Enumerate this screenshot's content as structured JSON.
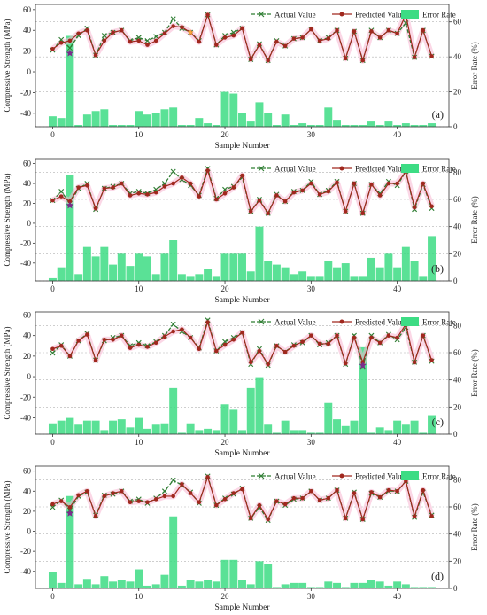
{
  "colors": {
    "actual": "#2e7d32",
    "predicted": "#a0281e",
    "error_bar": "#3ddc84",
    "highlight_pink": "#f7b6d2",
    "marker_purple": "#7b2d8b",
    "marker_orange": "#f4a93b",
    "gridline": "#b0b0b0"
  },
  "chart_data": [
    {
      "type": "line+bar",
      "panel_label": "(a)",
      "xlabel": "Sample Number",
      "ylabel": "Compressive Strength (MPa)",
      "ylabel_right": "Error Rate (%)",
      "x_ticks": [
        0,
        10,
        20,
        30,
        40
      ],
      "y_ticks": [
        -40,
        -20,
        0,
        20,
        40,
        60
      ],
      "y_right_ticks": [
        0,
        20,
        40,
        60
      ],
      "xlim": [
        -2,
        46
      ],
      "ylim": [
        -53,
        65
      ],
      "y_right_lim": [
        0,
        70
      ],
      "legend": [
        "Actual Value",
        "Predicted Value",
        "Error Rate"
      ],
      "legend_position": "top-right",
      "actual": [
        21,
        31,
        23,
        35,
        42,
        16,
        35,
        38,
        40,
        30,
        33,
        30,
        34,
        38,
        51,
        42,
        38,
        30,
        55,
        26,
        35,
        38,
        42,
        12,
        27,
        11,
        30,
        25,
        32,
        33,
        41,
        30,
        33,
        40,
        13,
        39,
        11,
        40,
        33,
        40,
        37,
        47,
        14,
        40,
        15
      ],
      "predicted": [
        22,
        28,
        30,
        37,
        40,
        16,
        30,
        38,
        40,
        29,
        30,
        26,
        30,
        37,
        44,
        43,
        38,
        29,
        55,
        26,
        33,
        35,
        42,
        12,
        26,
        11,
        29,
        25,
        32,
        33,
        41,
        30,
        32,
        40,
        13,
        39,
        11,
        39,
        33,
        40,
        37,
        55,
        14,
        40,
        15
      ],
      "error": [
        6,
        5,
        52,
        1,
        7,
        9,
        10,
        1,
        1,
        1,
        9,
        7,
        8,
        10,
        11,
        1,
        1,
        5,
        2,
        1,
        20,
        19,
        8,
        3,
        14,
        8,
        1,
        7,
        1,
        2,
        1,
        1,
        11,
        4,
        1,
        1,
        1,
        3,
        1,
        3,
        1,
        2,
        1,
        1,
        2
      ]
    },
    {
      "type": "line+bar",
      "panel_label": "(b)",
      "xlabel": "Sample Number",
      "ylabel": "Compressive Strength (MPa)",
      "ylabel_right": "Error Rate (%)",
      "x_ticks": [
        0,
        10,
        20,
        30,
        40
      ],
      "y_ticks": [
        -40,
        -20,
        0,
        20,
        40,
        60
      ],
      "y_right_ticks": [
        0,
        20,
        40,
        60,
        80
      ],
      "xlim": [
        -2,
        46
      ],
      "ylim": [
        -58,
        65
      ],
      "y_right_lim": [
        0,
        90
      ],
      "legend": [
        "Actual Value",
        "Predicted Value",
        "Error Rate"
      ],
      "legend_position": "top-right",
      "actual": [
        23,
        32,
        20,
        35,
        40,
        14,
        35,
        37,
        40,
        30,
        32,
        30,
        34,
        40,
        52,
        44,
        38,
        28,
        55,
        25,
        34,
        37,
        46,
        12,
        24,
        10,
        29,
        22,
        32,
        33,
        42,
        29,
        33,
        42,
        12,
        40,
        10,
        39,
        30,
        42,
        38,
        52,
        14,
        39,
        15
      ],
      "predicted": [
        23,
        27,
        22,
        36,
        38,
        15,
        35,
        36,
        40,
        28,
        30,
        29,
        31,
        37,
        40,
        46,
        40,
        27,
        53,
        24,
        30,
        36,
        48,
        12,
        23,
        10,
        28,
        22,
        31,
        33,
        40,
        29,
        32,
        41,
        12,
        40,
        10,
        39,
        28,
        40,
        40,
        52,
        16,
        40,
        17
      ],
      "error": [
        2,
        10,
        78,
        5,
        25,
        18,
        25,
        12,
        20,
        11,
        20,
        18,
        5,
        20,
        30,
        5,
        3,
        5,
        9,
        3,
        20,
        20,
        20,
        7,
        40,
        15,
        12,
        10,
        5,
        7,
        3,
        3,
        15,
        10,
        13,
        3,
        3,
        17,
        10,
        20,
        10,
        25,
        15,
        3,
        33
      ]
    },
    {
      "type": "line+bar",
      "panel_label": "(c)",
      "xlabel": "Sample Number",
      "ylabel": "Compressive Strength (MPa)",
      "ylabel_right": "Error Rate (%)",
      "x_ticks": [
        0,
        10,
        20,
        30,
        40
      ],
      "y_ticks": [
        -40,
        -20,
        0,
        20,
        40,
        60
      ],
      "y_right_ticks": [
        0,
        20,
        40,
        60,
        80
      ],
      "xlim": [
        -2,
        46
      ],
      "ylim": [
        -56,
        63
      ],
      "y_right_lim": [
        0,
        90
      ],
      "legend": [
        "Actual Value",
        "Predicted Value",
        "Error Rate"
      ],
      "legend_position": "top-right",
      "actual": [
        23,
        31,
        20,
        35,
        42,
        16,
        35,
        38,
        40,
        30,
        33,
        30,
        34,
        40,
        51,
        44,
        38,
        28,
        55,
        25,
        34,
        38,
        43,
        12,
        27,
        11,
        30,
        24,
        31,
        33,
        40,
        31,
        33,
        40,
        12,
        40,
        10,
        40,
        33,
        41,
        36,
        48,
        14,
        40,
        15
      ],
      "predicted": [
        27,
        30,
        20,
        35,
        41,
        16,
        36,
        36,
        40,
        28,
        31,
        29,
        33,
        39,
        44,
        46,
        38,
        27,
        53,
        25,
        31,
        36,
        43,
        14,
        25,
        12,
        30,
        24,
        30,
        34,
        40,
        32,
        32,
        40,
        13,
        38,
        14,
        38,
        33,
        40,
        38,
        51,
        14,
        40,
        16
      ],
      "error": [
        8,
        10,
        12,
        7,
        10,
        10,
        3,
        10,
        11,
        5,
        12,
        4,
        7,
        8,
        34,
        1,
        8,
        3,
        4,
        3,
        22,
        18,
        3,
        34,
        42,
        7,
        1,
        10,
        3,
        3,
        1,
        1,
        23,
        11,
        6,
        10,
        64,
        1,
        5,
        3,
        10,
        7,
        10,
        1,
        14
      ]
    },
    {
      "type": "line+bar",
      "panel_label": "(d)",
      "xlabel": "Sample Number",
      "ylabel": "Compressive Strength (MPa)",
      "ylabel_right": "Error Rate (%)",
      "x_ticks": [
        0,
        10,
        20,
        30,
        40
      ],
      "y_ticks": [
        -40,
        -20,
        0,
        20,
        40,
        60
      ],
      "y_right_ticks": [
        0,
        20,
        40,
        60,
        80
      ],
      "xlim": [
        -2,
        46
      ],
      "ylim": [
        -57,
        65
      ],
      "y_right_lim": [
        0,
        90
      ],
      "legend": [
        "Actual Value",
        "Predicted Value",
        "Error Rate"
      ],
      "legend_position": "top-right",
      "actual": [
        24,
        31,
        21,
        35,
        39,
        16,
        36,
        37,
        40,
        30,
        32,
        28,
        33,
        40,
        51,
        46,
        39,
        28,
        55,
        26,
        33,
        37,
        43,
        13,
        24,
        11,
        30,
        26,
        32,
        33,
        40,
        31,
        33,
        41,
        13,
        39,
        12,
        38,
        34,
        40,
        40,
        50,
        14,
        39,
        16
      ],
      "predicted": [
        27,
        30,
        24,
        36,
        40,
        15,
        35,
        38,
        40,
        29,
        30,
        29,
        32,
        35,
        35,
        47,
        38,
        29,
        54,
        26,
        32,
        38,
        42,
        13,
        26,
        12,
        30,
        27,
        33,
        33,
        40,
        31,
        33,
        41,
        13,
        38,
        12,
        39,
        34,
        41,
        40,
        50,
        15,
        41,
        15
      ],
      "error": [
        12,
        4,
        68,
        3,
        7,
        3,
        9,
        5,
        6,
        5,
        14,
        2,
        3,
        10,
        53,
        2,
        6,
        5,
        6,
        5,
        21,
        21,
        6,
        3,
        20,
        18,
        1,
        3,
        4,
        4,
        1,
        1,
        5,
        4,
        1,
        4,
        4,
        6,
        5,
        2,
        5,
        3,
        1,
        1,
        1
      ]
    }
  ]
}
